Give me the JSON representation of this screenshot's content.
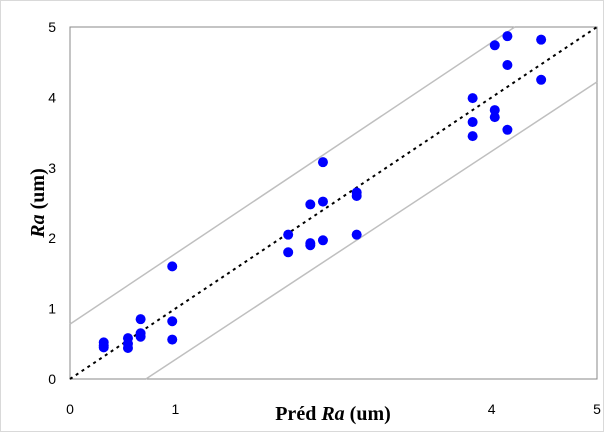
{
  "chart_data": {
    "type": "scatter",
    "title": "",
    "xlabel": {
      "prefix": "Préd ",
      "italic": "Ra",
      "suffix": "  (um)"
    },
    "ylabel": {
      "prefix": "",
      "italic": "Ra",
      "suffix": "  (um)"
    },
    "xlim": [
      0,
      5
    ],
    "ylim": [
      0,
      5
    ],
    "xticks": [
      "0",
      "1",
      "",
      "",
      "4",
      "5"
    ],
    "yticks": [
      "0",
      "1",
      "2",
      "3",
      "4",
      "5"
    ],
    "grid": false,
    "legend": "none",
    "series": [
      {
        "marker_color": "#0000ff",
        "points": [
          [
            0.32,
            0.48
          ],
          [
            0.32,
            0.52
          ],
          [
            0.32,
            0.45
          ],
          [
            0.55,
            0.44
          ],
          [
            0.55,
            0.5
          ],
          [
            0.55,
            0.58
          ],
          [
            0.67,
            0.6
          ],
          [
            0.67,
            0.65
          ],
          [
            0.67,
            0.85
          ],
          [
            0.97,
            0.56
          ],
          [
            0.97,
            0.82
          ],
          [
            0.97,
            1.6
          ],
          [
            2.07,
            1.8
          ],
          [
            2.07,
            2.05
          ],
          [
            2.28,
            1.9
          ],
          [
            2.28,
            1.93
          ],
          [
            2.28,
            2.48
          ],
          [
            2.4,
            1.97
          ],
          [
            2.4,
            2.52
          ],
          [
            2.4,
            3.08
          ],
          [
            2.72,
            2.05
          ],
          [
            2.72,
            2.6
          ],
          [
            2.72,
            2.65
          ],
          [
            3.82,
            3.45
          ],
          [
            3.82,
            3.65
          ],
          [
            3.82,
            3.99
          ],
          [
            4.03,
            3.72
          ],
          [
            4.03,
            3.82
          ],
          [
            4.03,
            4.74
          ],
          [
            4.15,
            3.54
          ],
          [
            4.15,
            4.46
          ],
          [
            4.15,
            4.87
          ],
          [
            4.47,
            4.25
          ],
          [
            4.47,
            4.82
          ]
        ]
      }
    ],
    "lines": [
      {
        "kind": "identity",
        "style": "dotted",
        "color": "#000000",
        "from": [
          0,
          0
        ],
        "to": [
          5,
          5
        ]
      },
      {
        "kind": "upper-bound",
        "style": "solid",
        "color": "#bfbfbf",
        "from": [
          0,
          0.78
        ],
        "to": [
          4.22,
          5
        ]
      },
      {
        "kind": "lower-bound",
        "style": "solid",
        "color": "#bfbfbf",
        "from": [
          0.72,
          0
        ],
        "to": [
          5,
          4.22
        ]
      }
    ]
  }
}
